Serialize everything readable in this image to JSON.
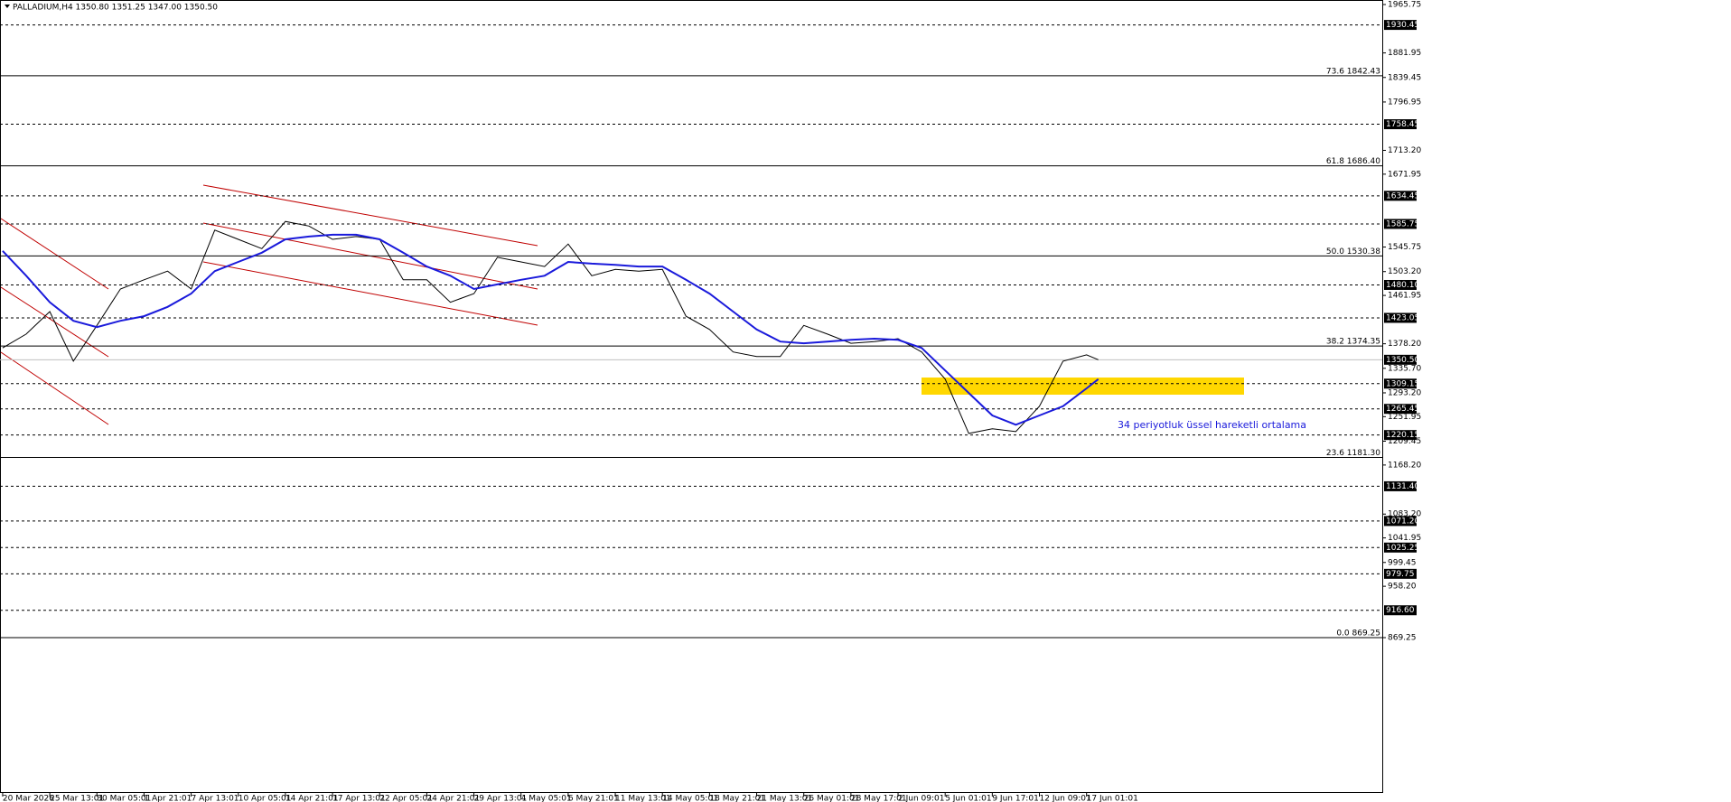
{
  "chart_data": {
    "type": "line",
    "title": "PALLADIUM,H4 1350.80 1351.25 1347.00 1350.50",
    "annotation": "34 periyotluk üssel hareketli ortalama",
    "xlim": [
      -0.9,
      468.4
    ],
    "ylim": [
      600.2,
      1973.6
    ],
    "xticks": [
      {
        "value": 0,
        "label": "20 Mar 2026"
      },
      {
        "value": 16,
        "label": "25 Mar 13:01"
      },
      {
        "value": 32,
        "label": "30 Mar 05:01"
      },
      {
        "value": 48,
        "label": "1 Apr 21:01"
      },
      {
        "value": 64,
        "label": "7 Apr 13:01"
      },
      {
        "value": 80,
        "label": "10 Apr 05:01"
      },
      {
        "value": 96,
        "label": "14 Apr 21:01"
      },
      {
        "value": 112,
        "label": "17 Apr 13:01"
      },
      {
        "value": 128,
        "label": "22 Apr 05:01"
      },
      {
        "value": 144,
        "label": "24 Apr 21:01"
      },
      {
        "value": 160,
        "label": "29 Apr 13:01"
      },
      {
        "value": 176,
        "label": "4 May 05:01"
      },
      {
        "value": 192,
        "label": "6 May 21:01"
      },
      {
        "value": 208,
        "label": "11 May 13:01"
      },
      {
        "value": 224,
        "label": "14 May 05:01"
      },
      {
        "value": 240,
        "label": "18 May 21:01"
      },
      {
        "value": 256,
        "label": "21 May 13:01"
      },
      {
        "value": 272,
        "label": "26 May 01:01"
      },
      {
        "value": 288,
        "label": "28 May 17:01"
      },
      {
        "value": 304,
        "label": "2 Jun 09:01"
      },
      {
        "value": 320,
        "label": "5 Jun 01:01"
      },
      {
        "value": 336,
        "label": "9 Jun 17:01"
      },
      {
        "value": 352,
        "label": "12 Jun 09:01"
      },
      {
        "value": 368,
        "label": "17 Jun 01:01"
      }
    ],
    "yticks": [
      1965.75,
      1881.95,
      1839.45,
      1796.95,
      {
        "value": 1713.2,
        "label": "1713.20"
      },
      1671.95,
      1545.75,
      {
        "value": 1503.2,
        "label": "1503.20"
      },
      1461.95,
      {
        "value": 1378.2,
        "label": "1378.20"
      },
      {
        "value": 1335.7,
        "label": "1335.70"
      },
      {
        "value": 1293.2,
        "label": "1293.20"
      },
      1251.95,
      1209.45,
      {
        "value": 1168.2,
        "label": "1168.20"
      },
      {
        "value": 1083.2,
        "label": "1083.20"
      },
      1041.95,
      999.45,
      {
        "value": 958.2,
        "label": "958.20"
      },
      869.25
    ],
    "levels": [
      {
        "value": 1930.45,
        "label": "1930.45"
      },
      {
        "value": 1758.45,
        "label": "1758.45"
      },
      {
        "value": 1634.45,
        "label": "1634.45"
      },
      {
        "value": 1585.75,
        "label": "1585.75"
      },
      {
        "value": 1480.1,
        "label": "1480.10"
      },
      {
        "value": 1423.05,
        "label": "1423.05"
      },
      {
        "value": 1309.15,
        "label": "1309.15"
      },
      {
        "value": 1265.45,
        "label": "1265.45"
      },
      {
        "value": 1220.15,
        "label": "1220.15"
      },
      {
        "value": 1131.4,
        "label": "1131.40"
      },
      {
        "value": 1071.2,
        "label": "1071.20"
      },
      {
        "value": 1025.25,
        "label": "1025.25"
      },
      {
        "value": 979.75,
        "label": "979.75"
      },
      {
        "value": 916.6,
        "label": "916.60"
      }
    ],
    "price_line": {
      "value": 1350.5,
      "label": "1350.50"
    },
    "fib_levels": [
      {
        "value": 1842.43,
        "label": "73.6 1842.43"
      },
      {
        "value": 1686.4,
        "label": "61.8 1686.40"
      },
      {
        "value": 1530.38,
        "label": "50.0 1530.38"
      },
      {
        "value": 1374.35,
        "label": "38.2 1374.35"
      },
      {
        "value": 1181.3,
        "label": "23.6 1181.30"
      },
      {
        "value": 869.25,
        "label": "0.0 869.25"
      }
    ],
    "x": [
      0,
      8,
      16,
      24,
      32,
      40,
      48,
      56,
      64,
      72,
      80,
      88,
      96,
      104,
      112,
      120,
      128,
      136,
      144,
      152,
      160,
      168,
      176,
      184,
      192,
      200,
      208,
      216,
      224,
      232,
      240,
      248,
      256,
      264,
      272,
      280,
      288,
      296,
      304,
      312,
      320,
      328,
      336,
      344,
      352,
      360,
      368,
      372
    ],
    "series": [
      {
        "color": "#000000",
        "values": [
          1371,
          1395,
          1434,
          1348,
          1410,
          1473,
          1489,
          1504,
          1473,
          1575,
          1559,
          1543,
          1590,
          1582,
          1559,
          1564,
          1559,
          1489,
          1489,
          1450,
          1465,
          1528,
          1520,
          1512,
          1551,
          1496,
          1507,
          1504,
          1507,
          1426,
          1403,
          1364,
          1356,
          1356,
          1410,
          1395,
          1379,
          1382,
          1387,
          1364,
          1317,
          1223,
          1231,
          1226,
          1270,
          1348,
          1359,
          1350.5
        ]
      },
      {
        "color": "#1a1adb",
        "values": [
          1539,
          1496,
          1450,
          1418,
          1407,
          1418,
          1426,
          1442,
          1465,
          1504,
          1520,
          1536,
          1559,
          1564,
          1567,
          1567,
          1559,
          1536,
          1512,
          1496,
          1473,
          1481,
          1489,
          1496,
          1520,
          1517,
          1515,
          1512,
          1512,
          1489,
          1465,
          1434,
          1403,
          1382,
          1379,
          1382,
          1385,
          1387,
          1385,
          1371,
          1332,
          1293,
          1254,
          1238,
          1254,
          1270,
          1301,
          1317
        ]
      }
    ]
  }
}
